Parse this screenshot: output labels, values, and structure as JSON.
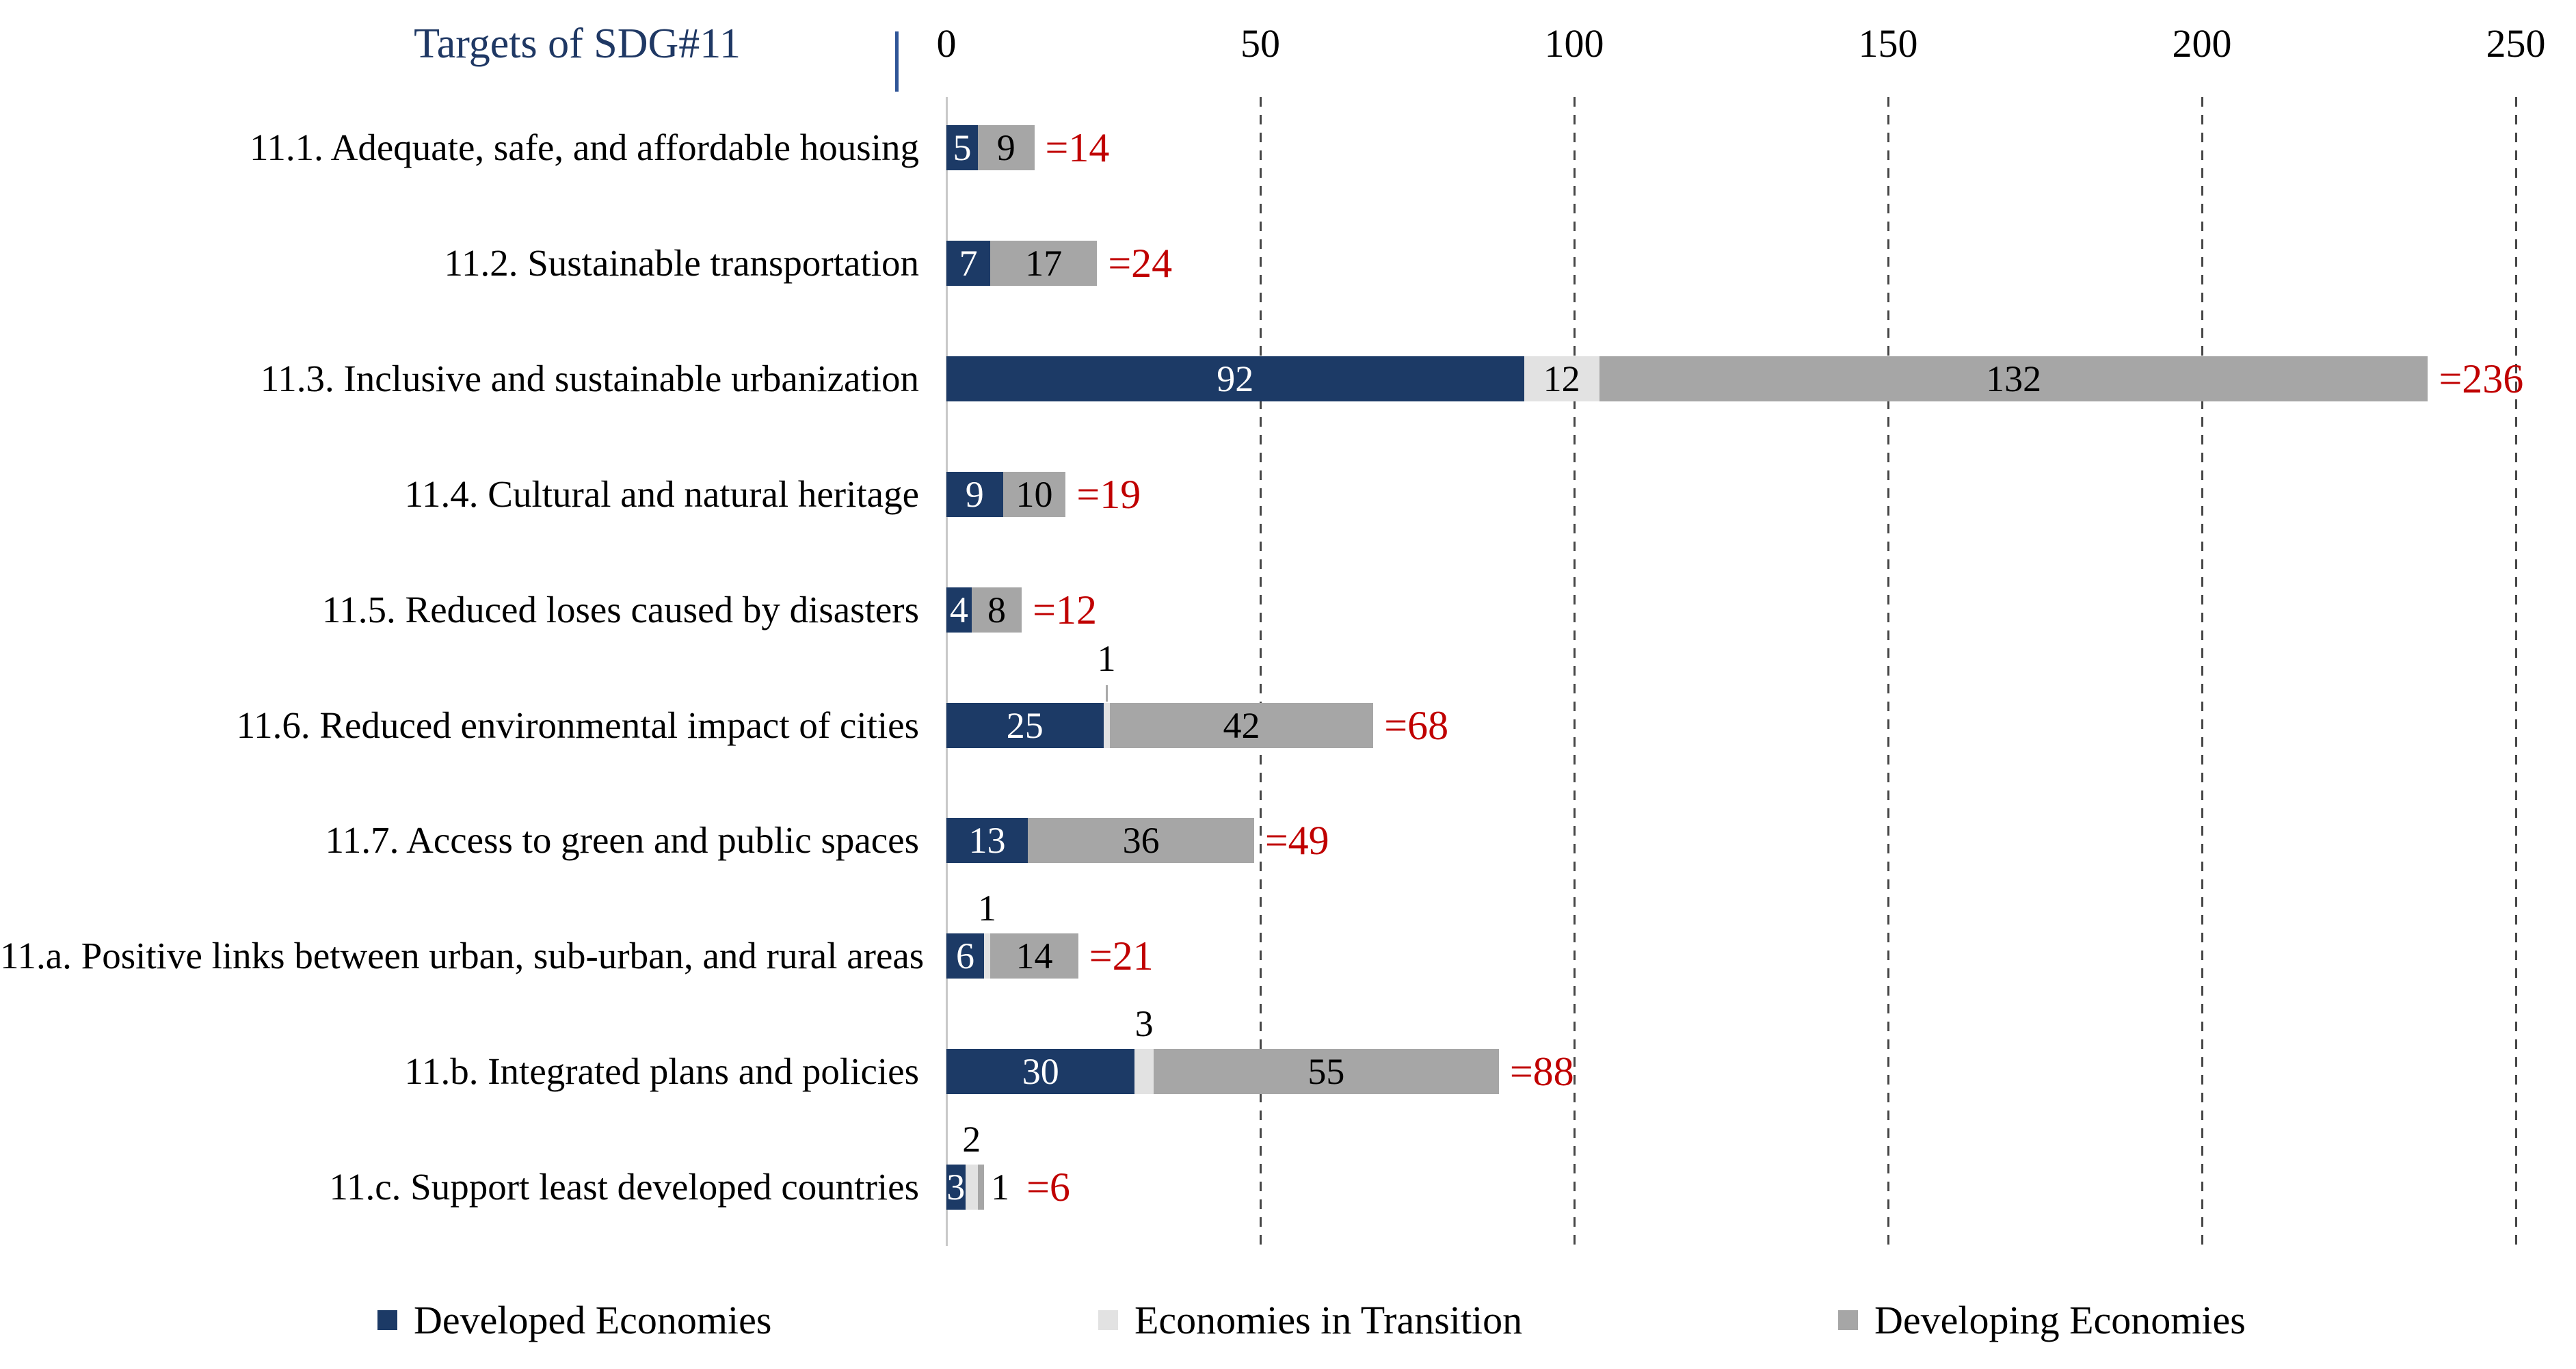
{
  "header": {
    "title": "Targets of SDG#11",
    "separator": "|"
  },
  "colors": {
    "developed": "#1C3A66",
    "transition": "#E2E2E2",
    "developing": "#A6A6A6",
    "total": "#C00000",
    "title": "#1F3864",
    "separator": "#2F5597",
    "axis_line": "#C9C9C9",
    "gridline": "#464646",
    "bar_label_on_dark": "#FFFFFF",
    "bar_label_on_light": "#000000"
  },
  "chart_data": {
    "type": "bar",
    "orientation": "horizontal",
    "stacked": true,
    "title": "Targets of SDG#11",
    "xlabel": "",
    "ylabel": "Targets of SDG#11",
    "axis": {
      "min": 0,
      "max": 250,
      "ticks": [
        0,
        50,
        100,
        150,
        200,
        250
      ],
      "gridlines": "vertical-dashed"
    },
    "categories": [
      "11.1. Adequate, safe, and affordable housing",
      "11.2. Sustainable transportation",
      "11.3. Inclusive and sustainable urbanization",
      "11.4. Cultural and natural heritage",
      "11.5. Reduced loses caused by disasters",
      "11.6. Reduced environmental impact of cities",
      "11.7. Access to green and public spaces",
      "11.a. Positive links between urban, sub-urban, and rural areas",
      "11.b. Integrated plans and policies",
      "11.c. Support least developed countries"
    ],
    "series": [
      {
        "name": "Developed Economies",
        "color": "#1C3A66",
        "values": [
          5,
          7,
          92,
          9,
          4,
          25,
          13,
          6,
          30,
          3
        ]
      },
      {
        "name": "Economies in Transition",
        "color": "#E2E2E2",
        "values": [
          0,
          0,
          12,
          0,
          0,
          1,
          0,
          1,
          3,
          2
        ]
      },
      {
        "name": "Developing Economies",
        "color": "#A6A6A6",
        "values": [
          9,
          17,
          132,
          10,
          8,
          42,
          36,
          14,
          55,
          1
        ]
      }
    ],
    "totals": [
      14,
      24,
      236,
      19,
      12,
      68,
      49,
      21,
      88,
      6
    ],
    "total_labels": [
      "=14",
      "=24",
      "=236",
      "=19",
      "=12",
      "=68",
      "=49",
      "=21",
      "=88",
      "=6"
    ],
    "legend_position": "bottom",
    "leader_rows": [
      5
    ]
  },
  "legend": {
    "items": [
      {
        "label": "Developed Economies",
        "color": "#1C3A66"
      },
      {
        "label": "Economies in Transition",
        "color": "#E2E2E2"
      },
      {
        "label": "Developing Economies",
        "color": "#A6A6A6"
      }
    ]
  }
}
